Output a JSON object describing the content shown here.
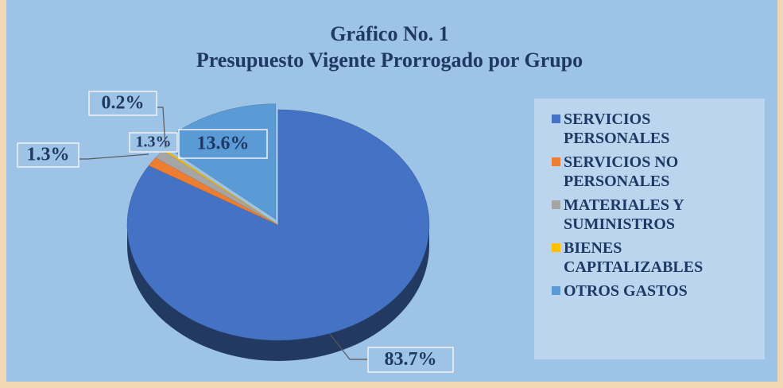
{
  "chart_data": {
    "type": "pie",
    "title": "Gráfico No. 1",
    "subtitle": "Presupuesto  Vigente  Prorrogado por Grupo",
    "categories": [
      "SERVICIOS PERSONALES",
      "SERVICIOS NO PERSONALES",
      "MATERIALES Y SUMINISTROS",
      "BIENES CAPITALIZABLES",
      "OTROS GASTOS"
    ],
    "values": [
      83.7,
      1.3,
      1.3,
      0.2,
      13.6
    ],
    "value_labels": [
      "83.7%",
      "1.3%",
      "1.3%",
      "0.2%",
      "13.6%"
    ],
    "colors": [
      "#4472c4",
      "#ed7d31",
      "#a5a5a5",
      "#ffc000",
      "#5b9bd5"
    ],
    "legend": "right"
  }
}
